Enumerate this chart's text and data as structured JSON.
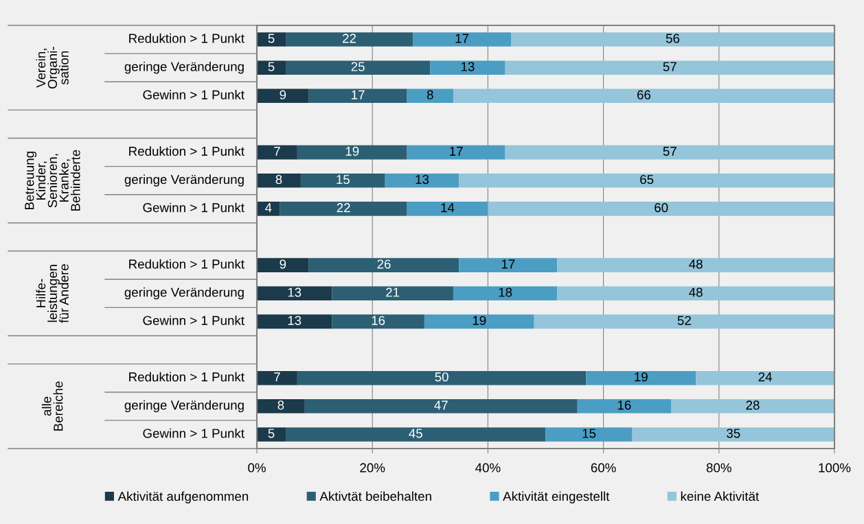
{
  "chart_data": {
    "type": "bar",
    "orientation": "horizontal",
    "stacked": true,
    "categories": [
      "Reduktion > 1 Punkt",
      "geringe Veränderung",
      "Gewinn > 1 Punkt",
      null,
      "Reduktion > 1 Punkt",
      "geringe Veränderung",
      "Gewinn > 1 Punkt",
      null,
      "Reduktion > 1 Punkt",
      "geringe Veränderung",
      "Gewinn > 1 Punkt",
      null,
      "Reduktion > 1 Punkt",
      "geringe Veränderung",
      "Gewinn > 1 Punkt"
    ],
    "series": [
      {
        "name": "Aktivität aufgenommen",
        "color": "#1b3a4b",
        "values": [
          5,
          5,
          9,
          null,
          7,
          7.6,
          4,
          null,
          9,
          13,
          13,
          null,
          7,
          8.3,
          5
        ],
        "value_labels": [
          "5",
          "5",
          "9",
          null,
          "7",
          "8",
          "4",
          null,
          "9",
          "13",
          "13",
          null,
          "7",
          "8",
          "5"
        ]
      },
      {
        "name": "Aktivtät beibehalten",
        "color": "#2c5f73",
        "values": [
          22,
          25,
          17,
          null,
          19,
          14.6,
          22,
          null,
          26,
          21,
          16,
          null,
          50,
          47.2,
          45
        ],
        "value_labels": [
          "22",
          "25",
          "17",
          null,
          "19",
          "15",
          "22",
          null,
          "26",
          "21",
          "16",
          null,
          "50",
          "47",
          "45"
        ]
      },
      {
        "name": "Aktivität eingestellt",
        "color": "#4b9dc3",
        "values": [
          17,
          13,
          8,
          null,
          17,
          12.8,
          14,
          null,
          17,
          18,
          19,
          null,
          19,
          16.2,
          15
        ],
        "value_labels": [
          "17",
          "13",
          "8",
          null,
          "17",
          "13",
          "14",
          null,
          "17",
          "18",
          "19",
          null,
          "19",
          "16",
          "15"
        ]
      },
      {
        "name": "keine Aktivität",
        "color": "#94c5da",
        "values": [
          56,
          57,
          66,
          null,
          57,
          65.0,
          60,
          null,
          48,
          48,
          52,
          null,
          24,
          28.3,
          35
        ],
        "value_labels": [
          "56",
          "57",
          "66",
          null,
          "57",
          "65",
          "60",
          null,
          "48",
          "48",
          "52",
          null,
          "24",
          "28",
          "35"
        ]
      }
    ],
    "annotations": [
      "Verein,\nOrgani-\nsation",
      "Betreuung\nKinder,\nSenioren,\nKranke,\nBehinderte",
      "Hilfe-\nleistungen\nfür Andere",
      "alle\nBereiche"
    ],
    "xlim": [
      0,
      100
    ],
    "xticks": [
      {
        "value": 0,
        "label": "0%"
      },
      {
        "value": 20,
        "label": "20%"
      },
      {
        "value": 40,
        "label": "40%"
      },
      {
        "value": 60,
        "label": "60%"
      },
      {
        "value": 80,
        "label": "80%"
      },
      {
        "value": 100,
        "label": "100%"
      }
    ],
    "grid": "x",
    "legend": "bottom"
  }
}
